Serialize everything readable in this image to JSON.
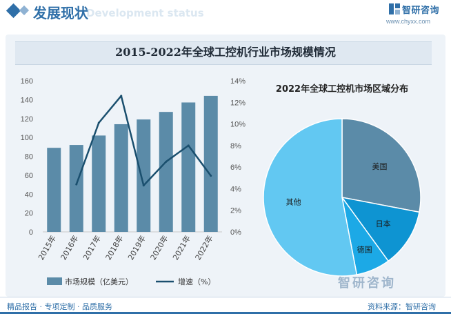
{
  "header": {
    "section_title": "发展现状",
    "section_subtitle": "Development status",
    "brand_name": "智研咨询",
    "brand_url": "www.chyxx.com"
  },
  "chart_data": [
    {
      "type": "bar",
      "title": "2015-2022年全球工控机行业市场规模情况",
      "categories": [
        "2015年",
        "2016年",
        "2017年",
        "2018年",
        "2019年",
        "2020年",
        "2021年",
        "2022年"
      ],
      "series": [
        {
          "name": "市场规模（亿美元）",
          "type": "bar",
          "axis": "left",
          "values": [
            89,
            92,
            102,
            114,
            119,
            127,
            137,
            144
          ],
          "color": "#5b8ba8"
        },
        {
          "name": "增速（%）",
          "type": "line",
          "axis": "right",
          "values": [
            null,
            4.4,
            10.1,
            12.6,
            4.3,
            6.5,
            8.0,
            5.2
          ],
          "color": "#1a4f6e"
        }
      ],
      "left_axis": {
        "ylim": [
          0,
          160
        ],
        "ticks": [
          "0",
          "20",
          "40",
          "60",
          "80",
          "100",
          "120",
          "140",
          "160"
        ]
      },
      "right_axis": {
        "ylim": [
          0,
          14
        ],
        "ticks": [
          "0%",
          "2%",
          "4%",
          "6%",
          "8%",
          "10%",
          "12%",
          "14%"
        ]
      },
      "legend": [
        "市场规模（亿美元）",
        "增速（%）"
      ],
      "legend_position": "bottom"
    },
    {
      "type": "pie",
      "title": "2022年全球工控机市场区域分布",
      "slices": [
        {
          "label": "美国",
          "value": 28,
          "color": "#5b8ba8"
        },
        {
          "label": "日本",
          "value": 12,
          "color": "#0e94d2"
        },
        {
          "label": "德国",
          "value": 7,
          "color": "#1ca9e6"
        },
        {
          "label": "其他",
          "value": 53,
          "color": "#62c8f2"
        }
      ]
    }
  ],
  "footer": {
    "left": "精品报告 · 专项定制 · 品质服务",
    "right": "资料来源：智研咨询",
    "watermark": "智研咨询"
  }
}
